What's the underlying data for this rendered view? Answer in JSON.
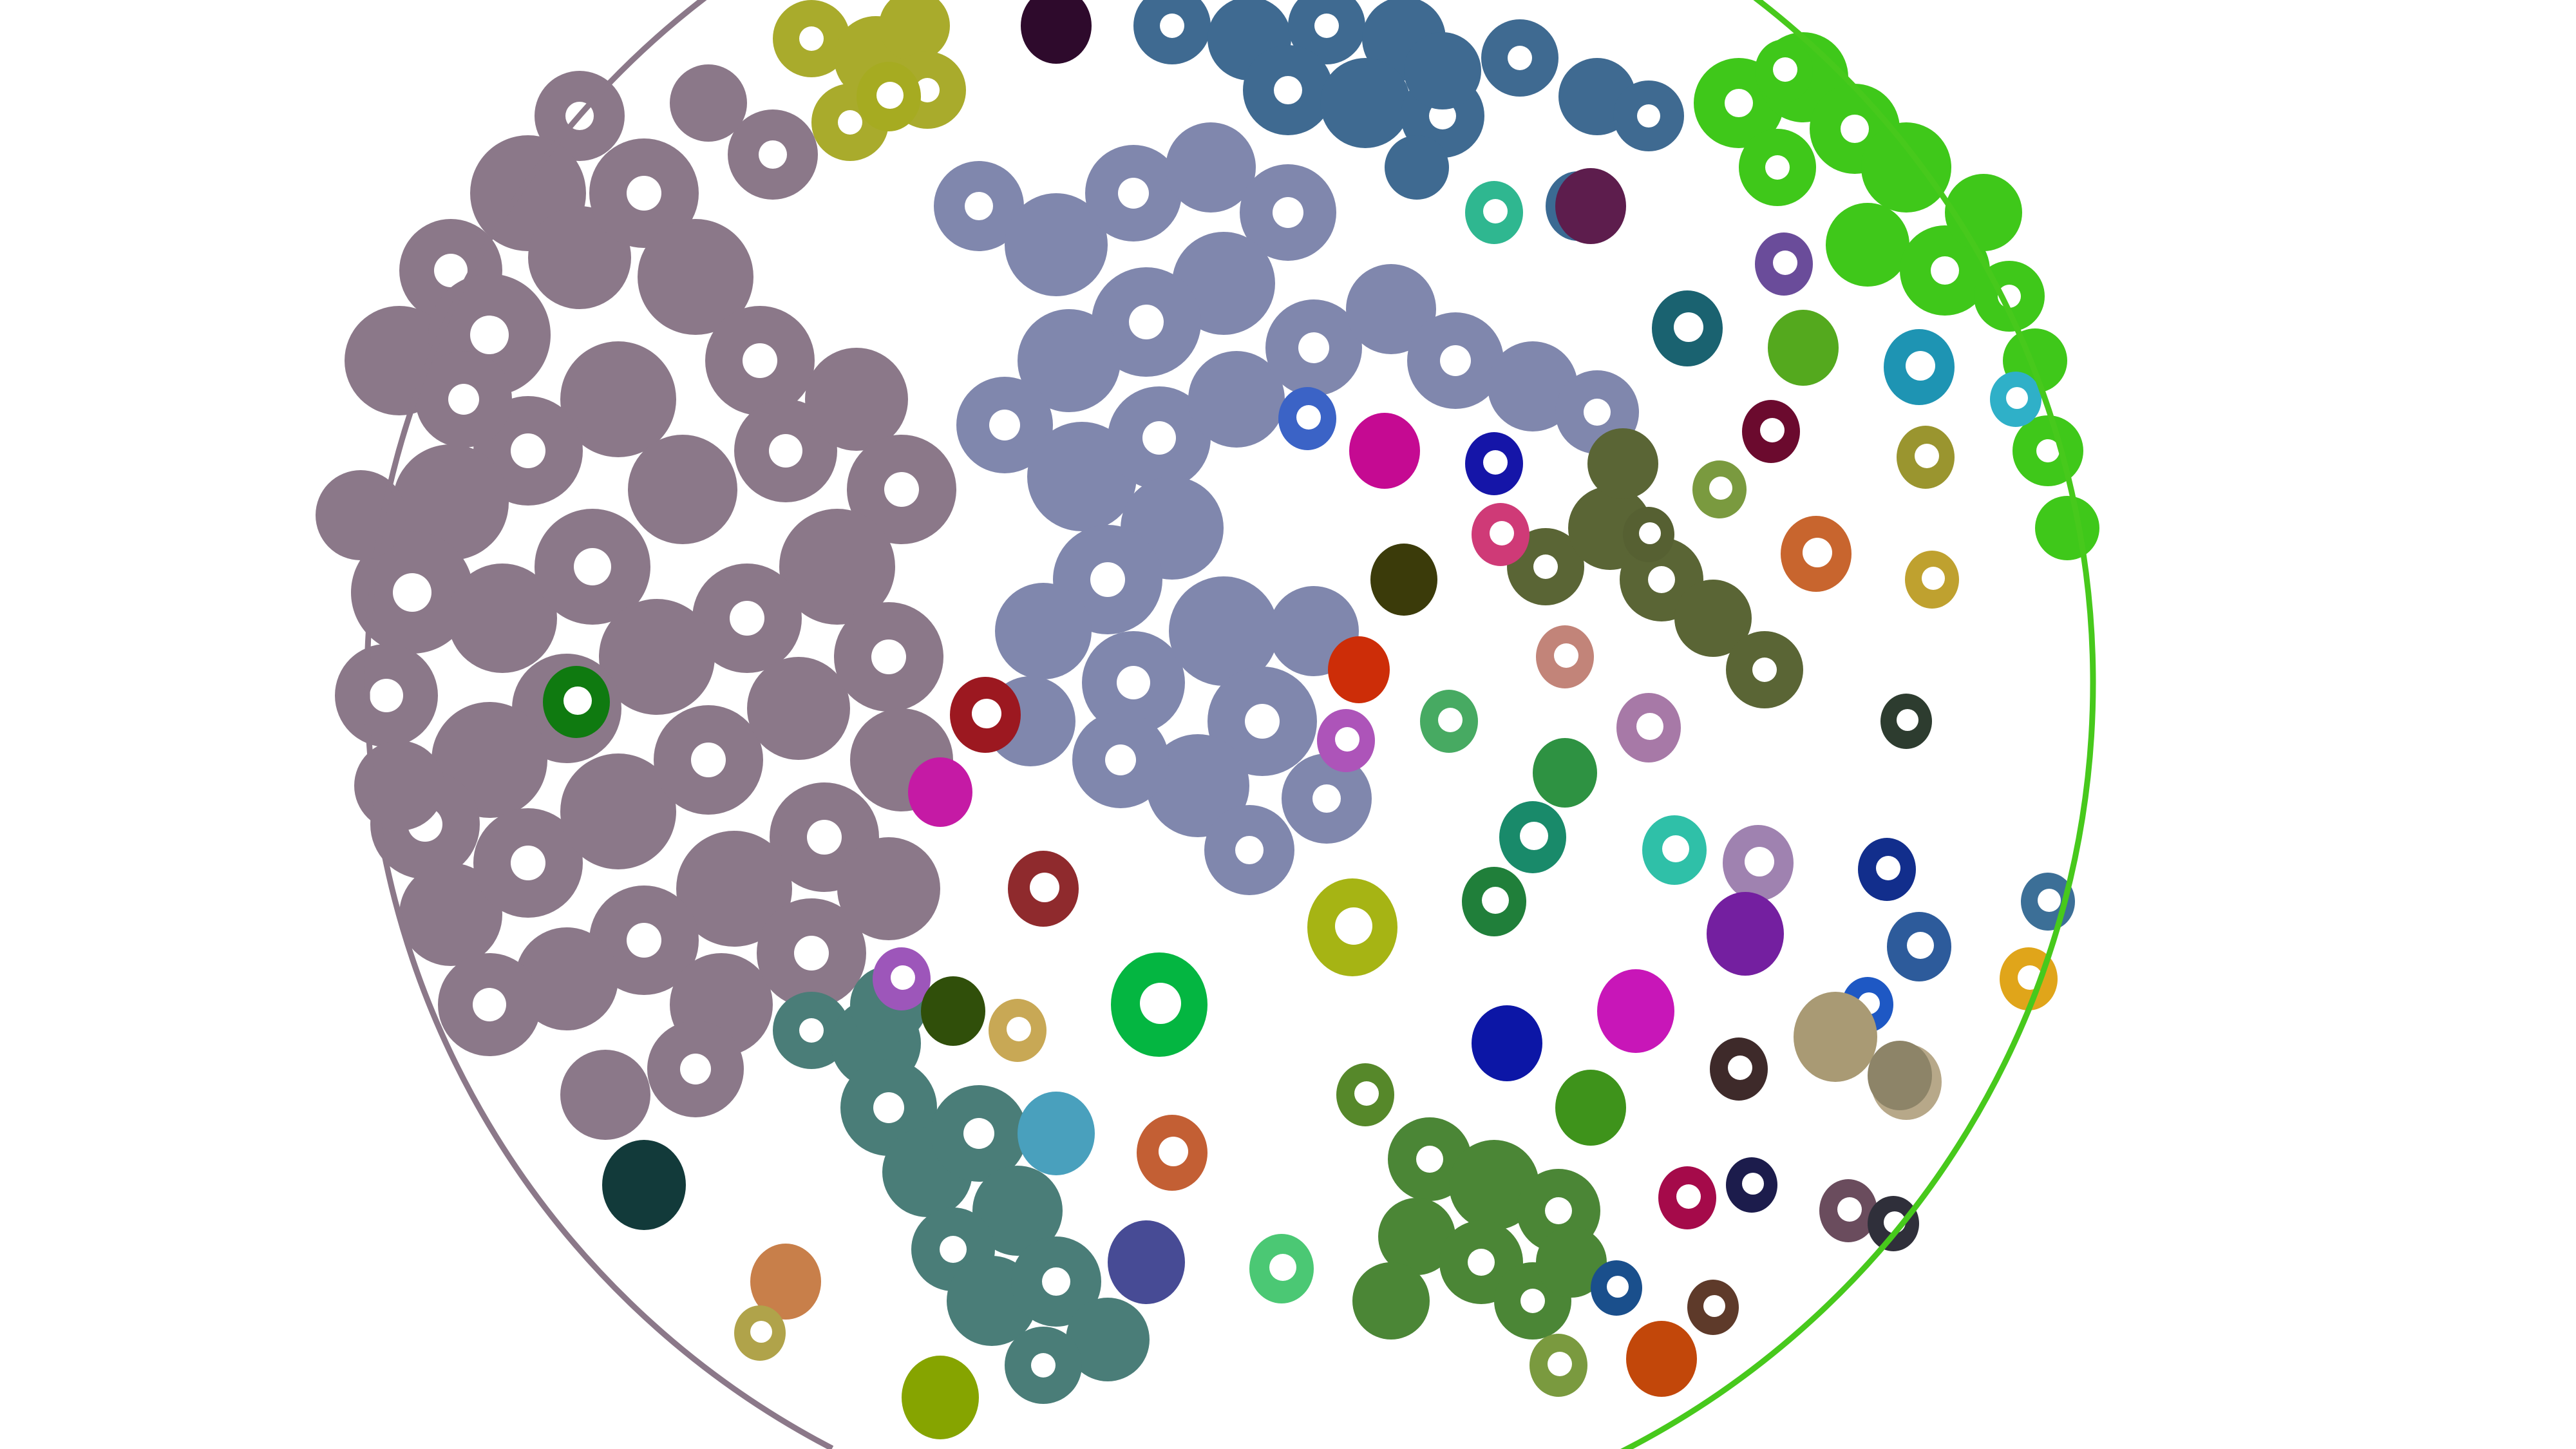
{
  "image": {
    "background_color": "#ffffff",
    "dish_outline_colors": [
      "#8b7889",
      "#47c91c"
    ]
  },
  "regions": [
    {
      "name": "large-mauve-cluster",
      "color": "#8b7889"
    },
    {
      "name": "large-lavender-blue-cluster",
      "color": "#8087ad"
    },
    {
      "name": "steel-blue-cluster",
      "color": "#3f6a91"
    },
    {
      "name": "bright-green-edge-cluster",
      "color": "#3fc81a"
    },
    {
      "name": "olive-yellow-cluster",
      "color": "#a9ab2c"
    },
    {
      "name": "teal-grey-cluster",
      "color": "#4a7d78"
    },
    {
      "name": "green-mid-cluster",
      "color": "#4b8636"
    },
    {
      "name": "olive-dark-cluster",
      "color": "#5a6535"
    }
  ],
  "colonies": [
    {
      "c": "#2e0a2c"
    },
    {
      "c": "#3b6a93"
    },
    {
      "c": "#5d1d4d"
    },
    {
      "c": "#2fb790"
    },
    {
      "c": "#a6ab21"
    },
    {
      "c": "#0f7a10"
    },
    {
      "c": "#3fc81a"
    },
    {
      "c": "#6a4c9a"
    },
    {
      "c": "#1a6270"
    },
    {
      "c": "#54a91e"
    },
    {
      "c": "#1e94b3"
    },
    {
      "c": "#2fb0c8"
    },
    {
      "c": "#3b63c6"
    },
    {
      "c": "#c50a92"
    },
    {
      "c": "#1515a8"
    },
    {
      "c": "#cf3a77"
    },
    {
      "c": "#6b0a2e"
    },
    {
      "c": "#9a952f"
    },
    {
      "c": "#7a9a3f"
    },
    {
      "c": "#c8652e"
    },
    {
      "c": "#bfa12f"
    },
    {
      "c": "#3b3b0a"
    },
    {
      "c": "#566032"
    },
    {
      "c": "#c28479"
    },
    {
      "c": "#cd2d08"
    },
    {
      "c": "#ad54b9"
    },
    {
      "c": "#47aa62"
    },
    {
      "c": "#9c1820"
    },
    {
      "c": "#c51aa5"
    },
    {
      "c": "#2e9242"
    },
    {
      "c": "#a779a7"
    },
    {
      "c": "#2fc0a8"
    },
    {
      "c": "#198a6a"
    },
    {
      "c": "#207f3a"
    },
    {
      "c": "#9f82b0"
    },
    {
      "c": "#741fa0"
    },
    {
      "c": "#122e8c"
    },
    {
      "c": "#2d5b9b"
    },
    {
      "c": "#1e58c4"
    },
    {
      "c": "#2d3c2f"
    },
    {
      "c": "#8f2a2d"
    },
    {
      "c": "#04b641"
    },
    {
      "c": "#a6b414"
    },
    {
      "c": "#9d56ba"
    },
    {
      "c": "#304f0a"
    },
    {
      "c": "#c8a855"
    },
    {
      "c": "#49a0bd"
    },
    {
      "c": "#c35f34"
    },
    {
      "c": "#474b95"
    },
    {
      "c": "#4bc874"
    },
    {
      "c": "#56882a"
    },
    {
      "c": "#3e931b"
    },
    {
      "c": "#0c16a6"
    },
    {
      "c": "#c816b8"
    },
    {
      "c": "#3e2a2a"
    },
    {
      "c": "#a99a74"
    },
    {
      "c": "#b7a889"
    },
    {
      "c": "#123a3a"
    },
    {
      "c": "#c87f4a"
    },
    {
      "c": "#b0a34a"
    },
    {
      "c": "#86a400"
    },
    {
      "c": "#a50a4a"
    },
    {
      "c": "#1c1c4c"
    },
    {
      "c": "#6a4c5d"
    },
    {
      "c": "#1a4f8c"
    },
    {
      "c": "#c2470a"
    },
    {
      "c": "#7a9a3f"
    },
    {
      "c": "#5e3a2a"
    },
    {
      "c": "#2f2f3a"
    },
    {
      "c": "#8d8468"
    },
    {
      "c": "#3c6f97"
    },
    {
      "c": "#e0a51a"
    }
  ]
}
